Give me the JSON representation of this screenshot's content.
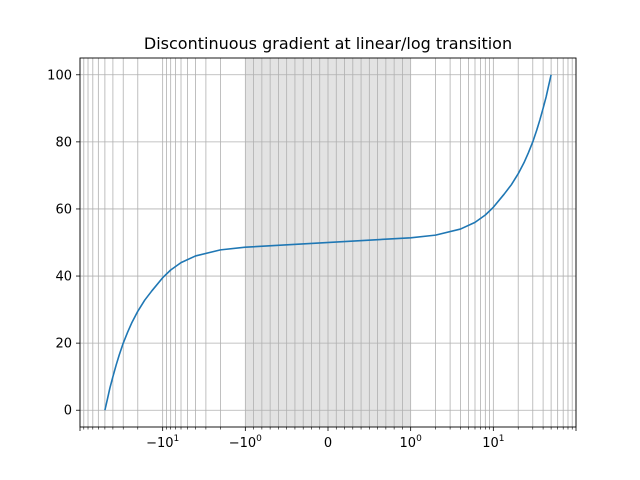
{
  "chart_data": {
    "type": "line",
    "title": "Discontinuous gradient at linear/log transition",
    "xlabel": "",
    "ylabel": "",
    "x_scale": "symlog",
    "x_linthresh": 1,
    "xlim": [
      -100,
      100
    ],
    "ylim": [
      -5,
      105
    ],
    "grid": true,
    "grid_minor_x": true,
    "linear_region_shaded": [
      -1,
      1
    ],
    "x_tick_labels": [
      {
        "value": -10,
        "base": "−10",
        "exp": "1"
      },
      {
        "value": -1,
        "base": "−10",
        "exp": "0"
      },
      {
        "value": 0,
        "base": "0",
        "exp": ""
      },
      {
        "value": 1,
        "base": "10",
        "exp": "0"
      },
      {
        "value": 10,
        "base": "10",
        "exp": "1"
      }
    ],
    "y_ticks": [
      0,
      20,
      40,
      60,
      80,
      100
    ],
    "series": [
      {
        "color": "#1f77b4",
        "x": [
          -50,
          -46.5,
          -43.5,
          -40,
          -36.5,
          -33.5,
          -30,
          -26.5,
          -23.5,
          -20,
          -16.5,
          -13.5,
          -10,
          -8,
          -6,
          -4,
          -2,
          -1,
          1,
          2,
          4,
          6,
          8,
          10,
          13.5,
          16.5,
          20,
          23.5,
          26.5,
          30,
          33.5,
          36.5,
          40,
          43.5,
          46.5,
          50
        ],
        "y": [
          0.0,
          3.4,
          6.6,
          10.0,
          13.5,
          16.5,
          20.0,
          23.3,
          26.2,
          29.5,
          32.8,
          35.6,
          39.5,
          41.8,
          44.0,
          46.0,
          47.8,
          48.6,
          51.4,
          52.2,
          54.0,
          56.0,
          58.2,
          60.5,
          64.4,
          67.2,
          70.5,
          73.8,
          76.7,
          80.0,
          83.5,
          86.5,
          90.0,
          93.4,
          96.6,
          100.0
        ]
      }
    ]
  }
}
